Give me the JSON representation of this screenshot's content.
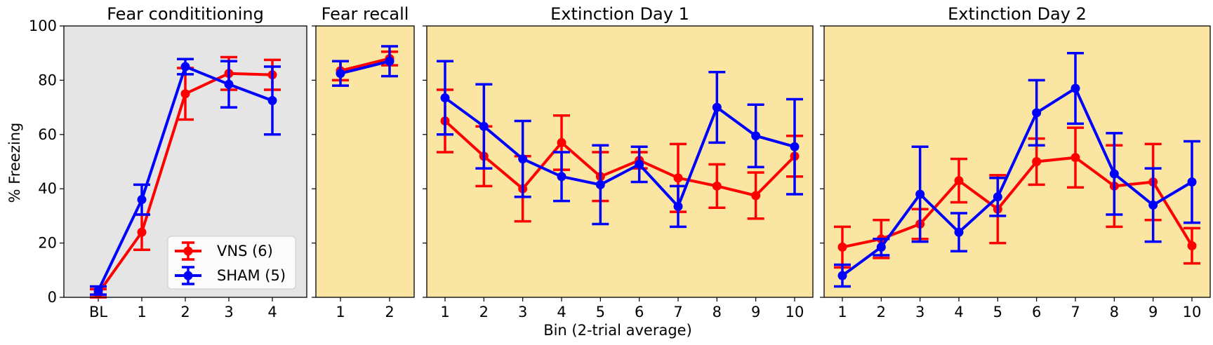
{
  "figure": {
    "ylabel": "% Freezing",
    "xlabel": "Bin (2-trial average)"
  },
  "chart_data": [
    {
      "type": "line",
      "title": "Fear condititioning",
      "background": "#e5e5e5",
      "categories": [
        "BL",
        "1",
        "2",
        "3",
        "4"
      ],
      "ylim": [
        0,
        100
      ],
      "yticks": [
        "0",
        "20",
        "40",
        "60",
        "80",
        "100"
      ],
      "series": [
        {
          "name": "VNS (6)",
          "color": "#ff0000",
          "values": [
            1.5,
            24,
            75,
            82.5,
            82
          ],
          "err": [
            1.5,
            6.5,
            9.5,
            6,
            5.5
          ]
        },
        {
          "name": "SHAM (5)",
          "color": "#0000ff",
          "values": [
            2.5,
            36,
            85,
            78.5,
            72.5
          ],
          "err": [
            1.5,
            5.5,
            2.8,
            8.5,
            12.5
          ]
        }
      ],
      "legend": "lower-right"
    },
    {
      "type": "line",
      "title": "Fear recall",
      "background": "#fae5a3",
      "categories": [
        "1",
        "2"
      ],
      "ylim": [
        0,
        100
      ],
      "series": [
        {
          "name": "VNS (6)",
          "color": "#ff0000",
          "values": [
            83.5,
            88
          ],
          "err": [
            3.5,
            2.5
          ]
        },
        {
          "name": "SHAM (5)",
          "color": "#0000ff",
          "values": [
            82.5,
            87
          ],
          "err": [
            4.5,
            5.5
          ]
        }
      ]
    },
    {
      "type": "line",
      "title": "Extinction Day 1",
      "background": "#fae5a3",
      "categories": [
        "1",
        "2",
        "3",
        "4",
        "5",
        "6",
        "7",
        "8",
        "9",
        "10"
      ],
      "ylim": [
        0,
        100
      ],
      "series": [
        {
          "name": "VNS (6)",
          "color": "#ff0000",
          "values": [
            65,
            52,
            40,
            57,
            44.5,
            50.5,
            44,
            41,
            37.5,
            52
          ],
          "err": [
            11.5,
            11,
            12,
            10,
            9,
            3,
            12.5,
            8,
            8.5,
            7.5
          ]
        },
        {
          "name": "SHAM (5)",
          "color": "#0000ff",
          "values": [
            73.5,
            63,
            51,
            44.5,
            41.5,
            49,
            33.5,
            70,
            59.5,
            55.5
          ],
          "err": [
            13.5,
            15.5,
            14,
            9,
            14.5,
            6.5,
            7.5,
            13,
            11.5,
            17.5
          ]
        }
      ]
    },
    {
      "type": "line",
      "title": "Extinction Day 2",
      "background": "#fae5a3",
      "categories": [
        "1",
        "2",
        "3",
        "4",
        "5",
        "6",
        "7",
        "8",
        "9",
        "10"
      ],
      "ylim": [
        0,
        100
      ],
      "series": [
        {
          "name": "VNS (6)",
          "color": "#ff0000",
          "values": [
            18.5,
            21.5,
            27,
            43,
            32.5,
            50,
            51.5,
            41,
            42.5,
            19
          ],
          "err": [
            7.5,
            7,
            5.5,
            8,
            12.5,
            8.5,
            11,
            15,
            14,
            6.5
          ]
        },
        {
          "name": "SHAM (5)",
          "color": "#0000ff",
          "values": [
            8,
            18.5,
            38,
            24,
            37,
            68,
            77,
            45.5,
            34,
            42.5
          ],
          "err": [
            4,
            3,
            17.5,
            7,
            7,
            12,
            13,
            15,
            13.5,
            15
          ]
        }
      ]
    }
  ]
}
